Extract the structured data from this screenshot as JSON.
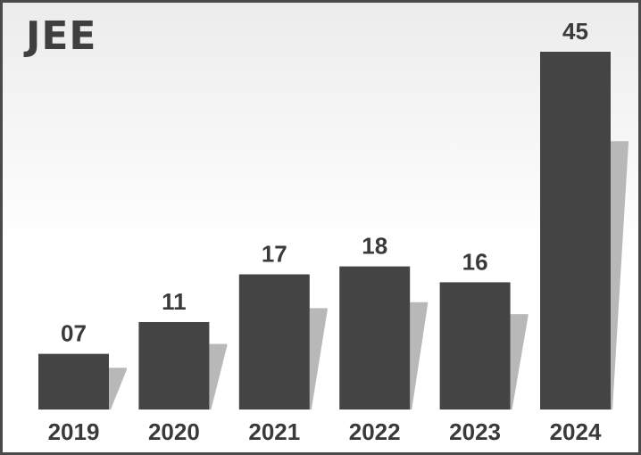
{
  "chart_data": {
    "type": "bar",
    "title": "JEE",
    "xlabel": "",
    "ylabel": "",
    "categories": [
      "2019",
      "2020",
      "2021",
      "2022",
      "2023",
      "2024"
    ],
    "values": [
      7,
      11,
      17,
      18,
      16,
      45
    ],
    "value_labels": [
      "07",
      "11",
      "17",
      "18",
      "16",
      "45"
    ],
    "ylim": [
      0,
      45
    ],
    "grid": false,
    "legend": "none"
  },
  "colors": {
    "bar": "#444444",
    "shadow": "#b8b8b8",
    "text": "#3a3a3a",
    "frame": "#4a4a4a"
  }
}
